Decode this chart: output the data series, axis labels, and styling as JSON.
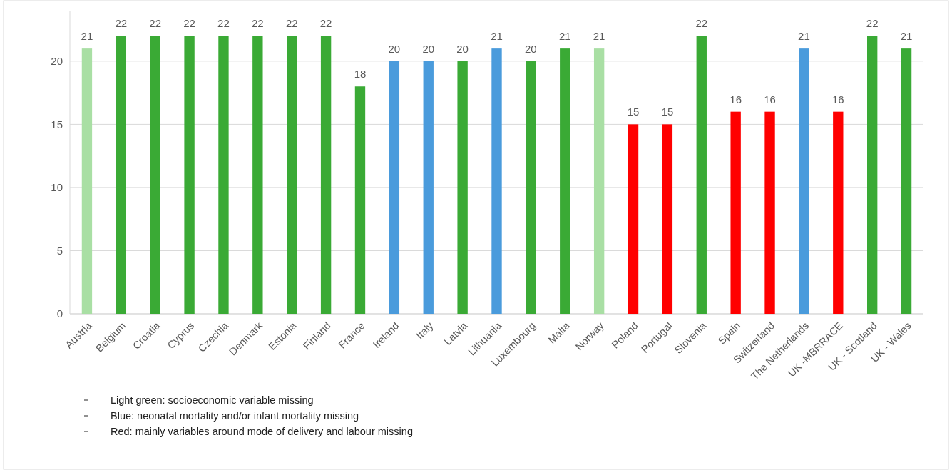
{
  "chart_data": {
    "type": "bar",
    "categories": [
      "Austria",
      "Belgium",
      "Croatia",
      "Cyprus",
      "Czechia",
      "Denmark",
      "Estonia",
      "Finland",
      "France",
      "Ireland",
      "Italy",
      "Latvia",
      "Lithuania",
      "Luxembourg",
      "Malta",
      "Norway",
      "Poland",
      "Portugal",
      "Slovenia",
      "Spain",
      "Switzerland",
      "The Netherlands",
      "UK -MBRRACE",
      "UK - Scotland",
      "UK - Wales"
    ],
    "values": [
      21,
      22,
      22,
      22,
      22,
      22,
      22,
      22,
      18,
      20,
      20,
      20,
      21,
      20,
      21,
      21,
      15,
      15,
      22,
      16,
      16,
      21,
      16,
      22,
      21
    ],
    "colors": [
      "#a9dfa4",
      "#3aaa35",
      "#3aaa35",
      "#3aaa35",
      "#3aaa35",
      "#3aaa35",
      "#3aaa35",
      "#3aaa35",
      "#3aaa35",
      "#4a9bdc",
      "#4a9bdc",
      "#3aaa35",
      "#4a9bdc",
      "#3aaa35",
      "#3aaa35",
      "#a9dfa4",
      "#ff0000",
      "#ff0000",
      "#3aaa35",
      "#ff0000",
      "#ff0000",
      "#4a9bdc",
      "#ff0000",
      "#3aaa35",
      "#3aaa35"
    ],
    "ylim": [
      0,
      24
    ],
    "yticks": [
      0,
      5,
      10,
      15,
      20
    ],
    "grid": "y",
    "data_labels": true,
    "annotations": [
      "Light green: socioeconomic variable missing",
      "Blue: neonatal mortality and/or infant mortality missing",
      "Red: mainly variables around mode of delivery and labour missing"
    ]
  }
}
